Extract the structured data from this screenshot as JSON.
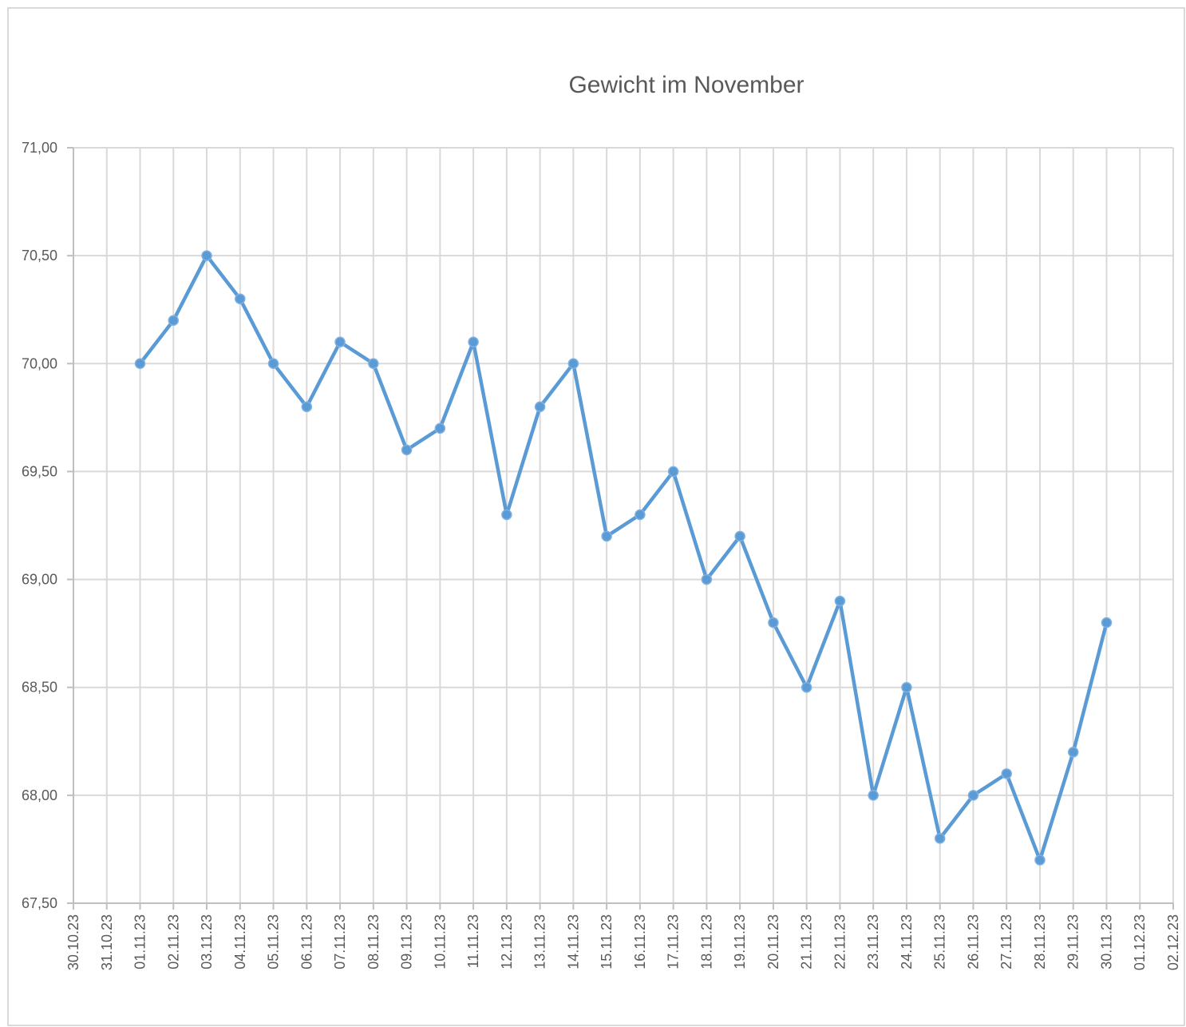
{
  "chart_data": {
    "type": "line",
    "title": "Gewicht im November",
    "x": [
      "01.11.23",
      "02.11.23",
      "03.11.23",
      "04.11.23",
      "05.11.23",
      "06.11.23",
      "07.11.23",
      "08.11.23",
      "09.11.23",
      "10.11.23",
      "11.11.23",
      "12.11.23",
      "13.11.23",
      "14.11.23",
      "15.11.23",
      "16.11.23",
      "17.11.23",
      "18.11.23",
      "19.11.23",
      "20.11.23",
      "21.11.23",
      "22.11.23",
      "23.11.23",
      "24.11.23",
      "25.11.23",
      "26.11.23",
      "27.11.23",
      "28.11.23",
      "29.11.23",
      "30.11.23"
    ],
    "series": [
      {
        "color": "#5b9bd5",
        "values": [
          70.0,
          70.2,
          70.5,
          70.3,
          70.0,
          69.8,
          70.1,
          70.0,
          69.6,
          69.7,
          70.1,
          69.3,
          69.8,
          70.0,
          69.2,
          69.3,
          69.5,
          69.0,
          69.2,
          68.8,
          68.5,
          68.9,
          68.0,
          68.5,
          67.8,
          68.0,
          68.1,
          67.7,
          68.2,
          68.8
        ]
      }
    ],
    "xlim": [
      "30.10.23",
      "02.12.23"
    ],
    "xticks": [
      "30.10.23",
      "31.10.23",
      "01.11.23",
      "02.11.23",
      "03.11.23",
      "04.11.23",
      "05.11.23",
      "06.11.23",
      "07.11.23",
      "08.11.23",
      "09.11.23",
      "10.11.23",
      "11.11.23",
      "12.11.23",
      "13.11.23",
      "14.11.23",
      "15.11.23",
      "16.11.23",
      "17.11.23",
      "18.11.23",
      "19.11.23",
      "20.11.23",
      "21.11.23",
      "22.11.23",
      "23.11.23",
      "24.11.23",
      "25.11.23",
      "26.11.23",
      "27.11.23",
      "28.11.23",
      "29.11.23",
      "30.11.23",
      "01.12.23",
      "02.12.23"
    ],
    "ylim": [
      67.5,
      71
    ],
    "yticks": [
      {
        "value": 67.5,
        "label": "67,50"
      },
      {
        "value": 68,
        "label": "68,00"
      },
      {
        "value": 68.5,
        "label": "68,50"
      },
      {
        "value": 69,
        "label": "69,00"
      },
      {
        "value": 69.5,
        "label": "69,50"
      },
      {
        "value": 70,
        "label": "70,00"
      },
      {
        "value": 70.5,
        "label": "70,50"
      },
      {
        "value": 71,
        "label": "71,00"
      }
    ],
    "grid": true
  }
}
